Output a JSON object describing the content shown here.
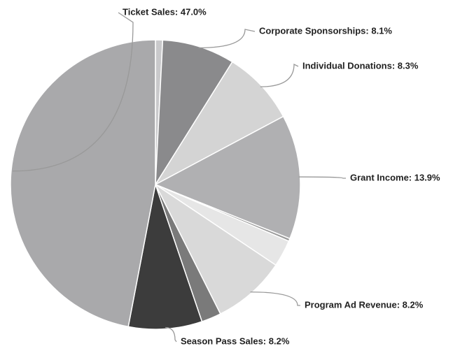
{
  "chart_data": {
    "type": "pie",
    "labels": [
      null,
      "Corporate Sponsorships: 8.1%",
      "Individual Donations: 8.3%",
      "Grant Income: 13.9%",
      null,
      null,
      "Program Ad Revenue: 8.2%",
      null,
      "Season Pass Sales: 8.2%",
      "Ticket Sales: 47.0%"
    ],
    "values": [
      0.8,
      8.1,
      8.3,
      13.9,
      0.3,
      3.0,
      8.2,
      2.2,
      8.2,
      47.0
    ],
    "colors": [
      "#c9c9cb",
      "#8a8a8c",
      "#d4d4d4",
      "#b0b0b2",
      "#9a9a9a",
      "#e6e6e6",
      "#d9d9d9",
      "#7a7a7a",
      "#3c3c3c",
      "#a9a9ab"
    ]
  }
}
